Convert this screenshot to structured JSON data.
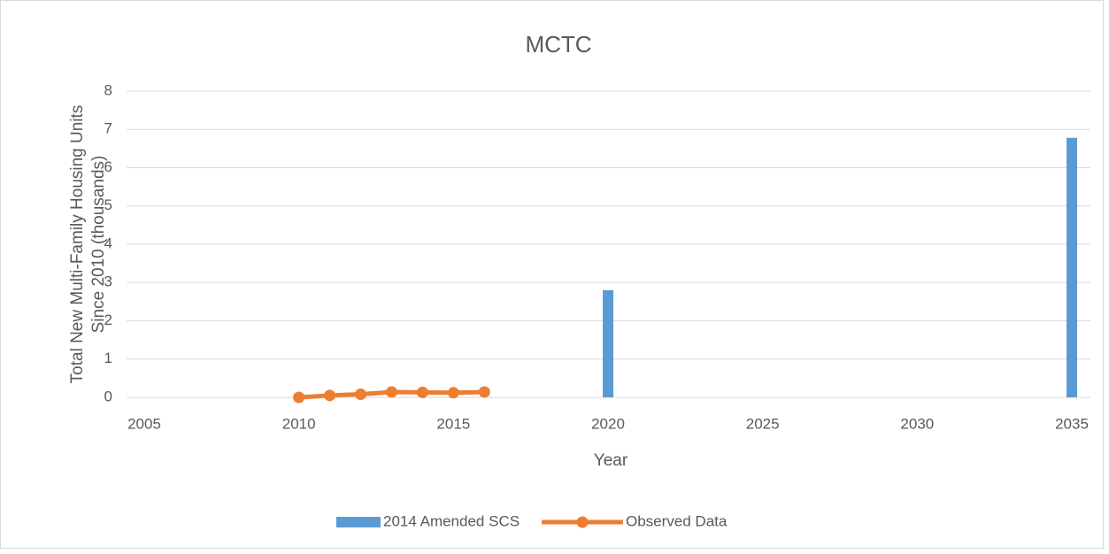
{
  "chart_data": {
    "type": "bar-line",
    "title": "MCTC",
    "x_label": "Year",
    "y_label": [
      "Total New Multi-Family Housing Units",
      "Since 2010 (thousands)"
    ],
    "xlim": [
      2005,
      2035
    ],
    "xticks": [
      2005,
      2010,
      2015,
      2020,
      2025,
      2030,
      2035
    ],
    "ylim": [
      0,
      8
    ],
    "yticks": [
      0,
      1,
      2,
      3,
      4,
      5,
      6,
      7,
      8
    ],
    "grid": true,
    "legend": "bottom",
    "series": [
      {
        "name": "2014 Amended SCS",
        "type": "bar",
        "color": "#5b9bd5",
        "x": [
          2020,
          2035
        ],
        "values": [
          2.8,
          6.78
        ]
      },
      {
        "name": "Observed Data",
        "type": "line",
        "color": "#ed7d31",
        "x": [
          2010,
          2011,
          2012,
          2013,
          2014,
          2015,
          2016
        ],
        "values": [
          0,
          0.05,
          0.08,
          0.14,
          0.13,
          0.12,
          0.14
        ]
      }
    ]
  }
}
